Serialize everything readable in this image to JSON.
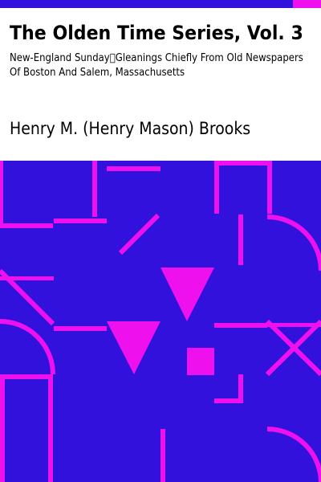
{
  "book": {
    "title": "The Olden Time Series, Vol. 3",
    "subtitle": "New-England Sunday\u0000Gleanings Chiefly From Old Newspapers Of Boston And Salem, Massachusetts",
    "author": "Henry M. (Henry Mason) Brooks"
  },
  "colors": {
    "background_art": "#3311dd",
    "pattern": "#ee11ee",
    "top_bar_dark": "#3311dd",
    "top_bar_accent": "#ee11ee",
    "header_bg": "#ffffff",
    "text": "#000000"
  }
}
